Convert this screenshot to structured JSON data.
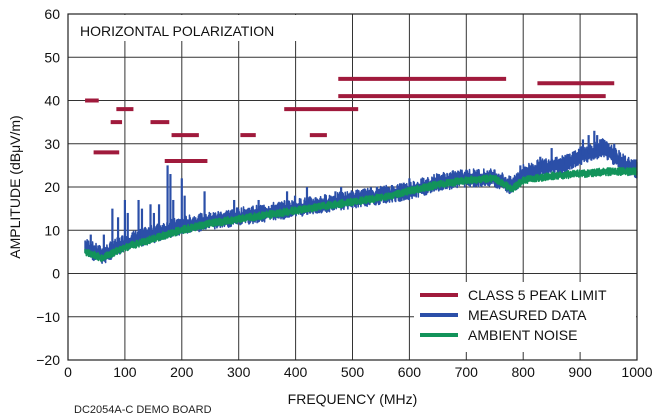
{
  "chart_data": {
    "type": "line",
    "title": "HORIZONTAL POLARIZATION",
    "xlabel": "FREQUENCY (MHz)",
    "ylabel": "AMPLITUDE (dBμV/m)",
    "xlim": [
      0,
      1000
    ],
    "ylim": [
      -20,
      60
    ],
    "xticks": [
      0,
      100,
      200,
      300,
      400,
      500,
      600,
      700,
      800,
      900,
      1000
    ],
    "yticks": [
      -20,
      -10,
      0,
      10,
      20,
      30,
      40,
      50,
      60
    ],
    "grid": true,
    "legend_position": "bottom-right",
    "colors": {
      "limit": "#a01a3c",
      "measured": "#2b4fa8",
      "ambient": "#12935a",
      "grid": "#333333"
    },
    "footer_text": "DC2054A-C DEMO BOARD",
    "series": [
      {
        "name": "CLASS 5 PEAK LIMIT",
        "style": "segments",
        "segments": [
          {
            "x": [
              30,
              54
            ],
            "y": 40
          },
          {
            "x": [
              45,
              90
            ],
            "y": 28
          },
          {
            "x": [
              75,
              95
            ],
            "y": 35
          },
          {
            "x": [
              85,
              115
            ],
            "y": 38
          },
          {
            "x": [
              145,
              178
            ],
            "y": 35
          },
          {
            "x": [
              170,
              245
            ],
            "y": 26
          },
          {
            "x": [
              182,
              230
            ],
            "y": 32
          },
          {
            "x": [
              303,
              330
            ],
            "y": 32
          },
          {
            "x": [
              380,
              510
            ],
            "y": 38
          },
          {
            "x": [
              425,
              455
            ],
            "y": 32
          },
          {
            "x": [
              475,
              770
            ],
            "y": 45
          },
          {
            "x": [
              475,
              945
            ],
            "y": 41
          },
          {
            "x": [
              825,
              960
            ],
            "y": 44
          }
        ]
      },
      {
        "name": "MEASURED DATA",
        "style": "noisy-line",
        "x": [
          30,
          60,
          100,
          150,
          200,
          250,
          300,
          350,
          400,
          450,
          500,
          550,
          600,
          650,
          700,
          750,
          780,
          800,
          850,
          870,
          900,
          920,
          940,
          960,
          980,
          1000
        ],
        "y": [
          6,
          4,
          7,
          9,
          11,
          12,
          13,
          14,
          15,
          16,
          17,
          18,
          19,
          21,
          22,
          22,
          20,
          23,
          25,
          25,
          27,
          28,
          29,
          27,
          25,
          24
        ],
        "spikes": [
          {
            "x": 40,
            "y": 9
          },
          {
            "x": 63,
            "y": 9
          },
          {
            "x": 78,
            "y": 15
          },
          {
            "x": 88,
            "y": 13
          },
          {
            "x": 100,
            "y": 17
          },
          {
            "x": 105,
            "y": 14
          },
          {
            "x": 124,
            "y": 17
          },
          {
            "x": 130,
            "y": 15
          },
          {
            "x": 145,
            "y": 16
          },
          {
            "x": 151,
            "y": 14
          },
          {
            "x": 160,
            "y": 16
          },
          {
            "x": 175,
            "y": 25
          },
          {
            "x": 180,
            "y": 23
          },
          {
            "x": 185,
            "y": 17
          },
          {
            "x": 200,
            "y": 22
          },
          {
            "x": 205,
            "y": 18
          },
          {
            "x": 240,
            "y": 19
          },
          {
            "x": 250,
            "y": 14
          },
          {
            "x": 292,
            "y": 17
          },
          {
            "x": 335,
            "y": 17
          },
          {
            "x": 385,
            "y": 19
          },
          {
            "x": 399,
            "y": 18
          },
          {
            "x": 420,
            "y": 20
          },
          {
            "x": 470,
            "y": 19
          },
          {
            "x": 480,
            "y": 20
          },
          {
            "x": 500,
            "y": 19
          },
          {
            "x": 590,
            "y": 21
          },
          {
            "x": 600,
            "y": 22
          },
          {
            "x": 680,
            "y": 23
          },
          {
            "x": 700,
            "y": 24
          },
          {
            "x": 795,
            "y": 25
          },
          {
            "x": 830,
            "y": 27
          },
          {
            "x": 850,
            "y": 29
          },
          {
            "x": 870,
            "y": 27
          },
          {
            "x": 905,
            "y": 31
          },
          {
            "x": 915,
            "y": 32
          },
          {
            "x": 925,
            "y": 33
          },
          {
            "x": 930,
            "y": 32
          },
          {
            "x": 940,
            "y": 31
          },
          {
            "x": 950,
            "y": 30
          },
          {
            "x": 960,
            "y": 30
          },
          {
            "x": 970,
            "y": 28
          }
        ]
      },
      {
        "name": "AMBIENT NOISE",
        "style": "noisy-line",
        "x": [
          30,
          60,
          100,
          150,
          200,
          250,
          300,
          350,
          400,
          450,
          500,
          550,
          600,
          650,
          700,
          750,
          780,
          800,
          850,
          900,
          950,
          1000
        ],
        "y": [
          5,
          3.5,
          6,
          8,
          10,
          11.5,
          12.5,
          13.5,
          14.5,
          15.5,
          16.5,
          17.5,
          19,
          20.5,
          21.5,
          22,
          19.5,
          21.5,
          22.5,
          23,
          23.5,
          23.5
        ],
        "spikes": []
      }
    ]
  }
}
